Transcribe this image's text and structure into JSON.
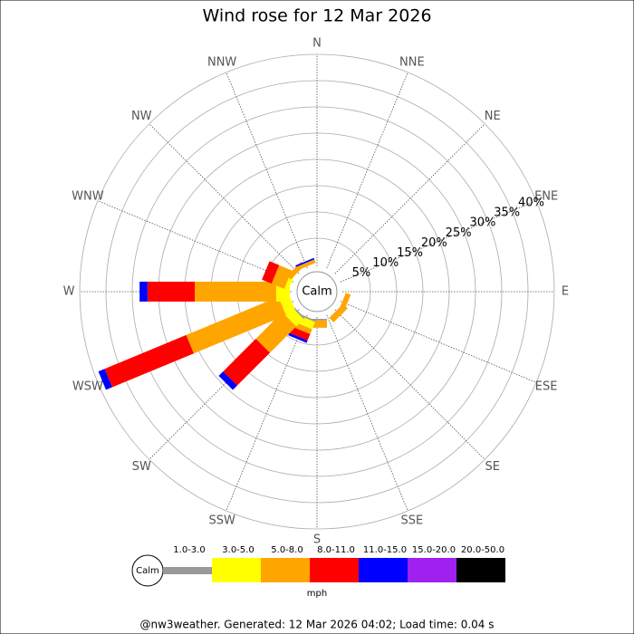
{
  "chart_data": {
    "type": "windrose",
    "title": "Wind rose for 12 Mar 2026",
    "directions": [
      "N",
      "NNE",
      "NE",
      "ENE",
      "E",
      "ESE",
      "SE",
      "SSE",
      "S",
      "SSW",
      "SW",
      "WSW",
      "W",
      "WNW",
      "NW",
      "NNW"
    ],
    "rlim": [
      0,
      40
    ],
    "rticks": [
      {
        "value": 5,
        "label": "5%"
      },
      {
        "value": 10,
        "label": "10%"
      },
      {
        "value": 15,
        "label": "15%"
      },
      {
        "value": 20,
        "label": "20%"
      },
      {
        "value": 25,
        "label": "25%"
      },
      {
        "value": 30,
        "label": "30%"
      },
      {
        "value": 35,
        "label": "35%"
      },
      {
        "value": 40,
        "label": "40%"
      }
    ],
    "calm_label": "Calm",
    "unit": "mph",
    "series": [
      {
        "name": "1.0-3.0",
        "color": "#999999",
        "values": [
          0,
          0,
          0,
          0,
          0,
          0,
          0,
          0,
          0.3,
          0.3,
          0.3,
          0,
          0,
          0,
          0,
          0
        ]
      },
      {
        "name": "3.0-5.0",
        "color": "#ffff00",
        "values": [
          0,
          0,
          0,
          0,
          0,
          0,
          0,
          0,
          0,
          1.5,
          2.0,
          2.0,
          2.6,
          0.8,
          0,
          0
        ]
      },
      {
        "name": "5.0-8.0",
        "color": "#ffa500",
        "values": [
          0,
          0,
          0,
          0,
          0,
          1.0,
          1.2,
          0,
          1.4,
          1.0,
          7.1,
          19.0,
          15.5,
          2.6,
          1.0,
          0.7
        ]
      },
      {
        "name": "8.0-11.0",
        "color": "#ff0000",
        "values": [
          0,
          0,
          0,
          0,
          0,
          0,
          0,
          0,
          0,
          1.3,
          8.8,
          16.8,
          9.0,
          2.0,
          0,
          0
        ]
      },
      {
        "name": "11.0-15.0",
        "color": "#0000ff",
        "values": [
          0,
          0,
          0,
          0,
          0,
          0,
          0,
          0,
          0,
          0.5,
          1.2,
          1.3,
          1.5,
          0,
          0,
          0.3
        ]
      },
      {
        "name": "15.0-20.0",
        "color": "#a020f0",
        "values": [
          0,
          0,
          0,
          0,
          0,
          0,
          0,
          0,
          0,
          0,
          0,
          0,
          0,
          0,
          0,
          0
        ]
      },
      {
        "name": "20.0-50.0",
        "color": "#000000",
        "values": [
          0,
          0,
          0,
          0,
          0,
          0,
          0,
          0,
          0,
          0,
          0,
          0,
          0,
          0,
          0,
          0
        ]
      }
    ],
    "footer": "@nw3weather. Generated: 12 Mar 2026 04:02; Load time: 0.04 s"
  }
}
